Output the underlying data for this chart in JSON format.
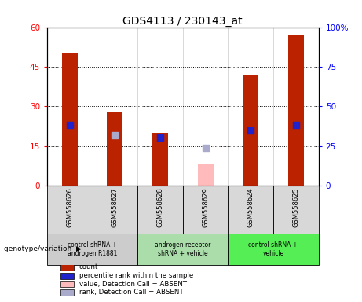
{
  "title": "GDS4113 / 230143_at",
  "samples": [
    "GSM558626",
    "GSM558627",
    "GSM558628",
    "GSM558629",
    "GSM558624",
    "GSM558625"
  ],
  "count_values": [
    50,
    28,
    20,
    null,
    42,
    57
  ],
  "count_absent_values": [
    null,
    null,
    null,
    8,
    null,
    null
  ],
  "percentile_present": [
    38,
    null,
    30.5,
    null,
    35,
    38
  ],
  "percentile_absent": [
    null,
    32,
    null,
    24,
    null,
    null
  ],
  "ylim_left": [
    0,
    60
  ],
  "ylim_right": [
    0,
    100
  ],
  "yticks_left": [
    0,
    15,
    30,
    45,
    60
  ],
  "ytick_labels_left": [
    "0",
    "15",
    "30",
    "45",
    "60"
  ],
  "yticks_right": [
    0,
    25,
    50,
    75,
    100
  ],
  "ytick_labels_right": [
    "0",
    "25",
    "50",
    "75",
    "100%"
  ],
  "bar_color_red": "#bb2200",
  "bar_color_pink": "#ffbbbb",
  "dot_color_blue": "#2222cc",
  "dot_color_lightblue": "#aaaacc",
  "bar_width": 0.35,
  "dot_size": 30,
  "group_defs": [
    {
      "start": 0,
      "end": 1,
      "color": "#cccccc",
      "label": "control shRNA +\nandrogen R1881"
    },
    {
      "start": 2,
      "end": 3,
      "color": "#aaddaa",
      "label": "androgen receptor\nshRNA + vehicle"
    },
    {
      "start": 4,
      "end": 5,
      "color": "#55ee55",
      "label": "control shRNA +\nvehicle"
    }
  ],
  "legend_items": [
    {
      "label": "count",
      "color": "#bb2200"
    },
    {
      "label": "percentile rank within the sample",
      "color": "#2222cc"
    },
    {
      "label": "value, Detection Call = ABSENT",
      "color": "#ffbbbb"
    },
    {
      "label": "rank, Detection Call = ABSENT",
      "color": "#aaaacc"
    }
  ],
  "group_label_text": "genotype/variation"
}
